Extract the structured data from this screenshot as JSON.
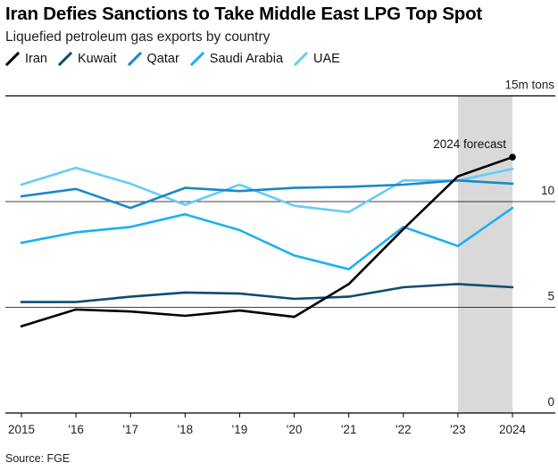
{
  "chart_data": {
    "type": "line",
    "title": "Iran Defies Sanctions to Take Middle East LPG Top Spot",
    "subtitle": "Liquefied petroleum gas exports by country",
    "unit_label": "15m tons",
    "x": [
      "2015",
      "'16",
      "'17",
      "'18",
      "'19",
      "'20",
      "'21",
      "'22",
      "'23",
      "2024"
    ],
    "y_ticks": [
      0,
      5,
      10
    ],
    "ylim": [
      0,
      15
    ],
    "series": [
      {
        "name": "Iran",
        "color": "#000000",
        "values": [
          4.1,
          4.9,
          4.8,
          4.6,
          4.85,
          4.55,
          6.1,
          8.7,
          11.2,
          12.1
        ]
      },
      {
        "name": "Kuwait",
        "color": "#0b4d72",
        "values": [
          5.25,
          5.25,
          5.5,
          5.7,
          5.65,
          5.4,
          5.5,
          5.95,
          6.1,
          5.95
        ]
      },
      {
        "name": "Qatar",
        "color": "#1a88c9",
        "values": [
          10.25,
          10.6,
          9.7,
          10.65,
          10.5,
          10.65,
          10.7,
          10.8,
          11.0,
          10.85
        ]
      },
      {
        "name": "Saudi Arabia",
        "color": "#1bb0f2",
        "values": [
          8.05,
          8.55,
          8.8,
          9.4,
          8.65,
          7.45,
          6.8,
          8.8,
          7.9,
          9.7
        ]
      },
      {
        "name": "UAE",
        "color": "#66ccf7",
        "values": [
          10.8,
          11.6,
          10.85,
          9.85,
          10.8,
          9.8,
          9.5,
          11.0,
          11.0,
          11.55
        ]
      }
    ],
    "forecast": {
      "label": "2024 forecast",
      "start": "'23",
      "end": "2024"
    },
    "legend_position": "top-left"
  },
  "source": "Source: FGE"
}
